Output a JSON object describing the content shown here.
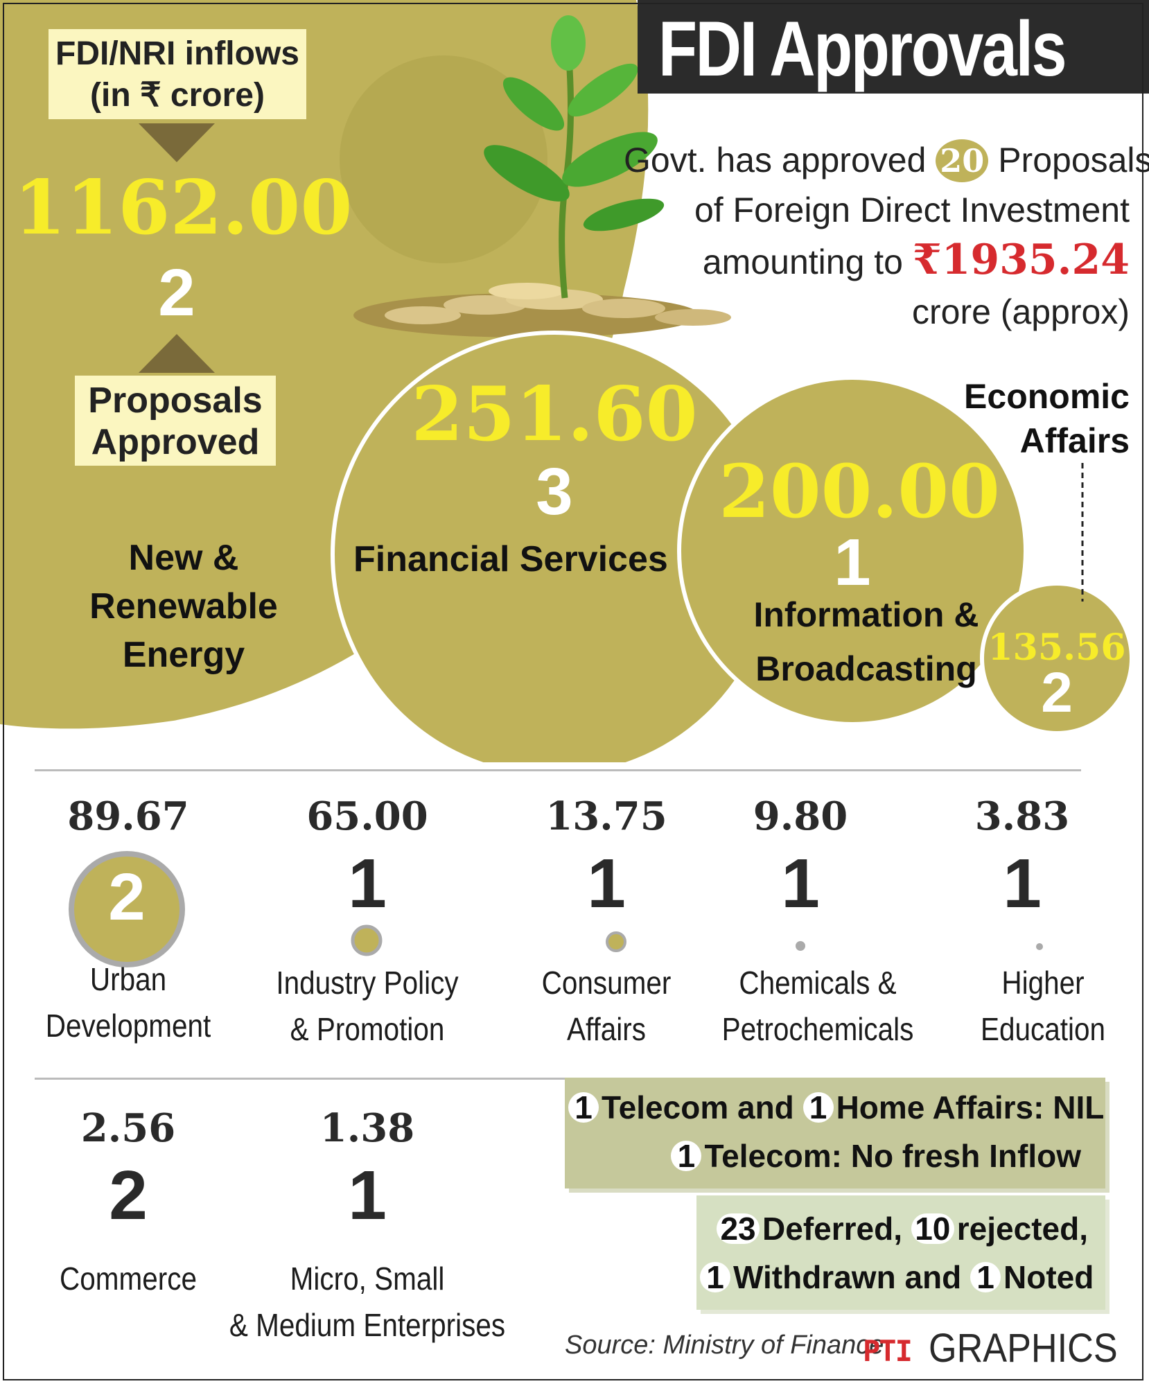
{
  "header": {
    "title": "FDI Approvals",
    "summary_prefix": "Govt. has approved",
    "summary_count": "20",
    "summary_mid1": "Proposals",
    "summary_mid2": "of Foreign Direct Investment",
    "summary_mid3": "amounting to",
    "summary_amount": "₹1935.24",
    "summary_suffix": "crore (approx)"
  },
  "legend": {
    "inflow_label_line1": "FDI/NRI inflows",
    "inflow_label_line2": "(in ₹ crore)",
    "proposals_label_line1": "Proposals",
    "proposals_label_line2": "Approved"
  },
  "colors": {
    "olive": "#bfb25a",
    "yellow": "#f7ec2a",
    "red": "#d62a2e",
    "green_box": "#c5c89b",
    "green_box2": "#d6e0c2"
  },
  "chart_data": {
    "type": "bubble",
    "title": "FDI Approvals",
    "units": "₹ crore",
    "bubbles": [
      {
        "sector": "New & Renewable Energy",
        "value_text": "1162.00",
        "value": 1162.0,
        "proposals": 2
      },
      {
        "sector": "Financial Services",
        "value_text": "251.60",
        "value": 251.6,
        "proposals": 3
      },
      {
        "sector": "Information & Broadcasting",
        "value_text": "200.00",
        "value": 200.0,
        "proposals": 1
      },
      {
        "sector": "Economic Affairs",
        "value_text": "135.56",
        "value": 135.56,
        "proposals": 2
      }
    ],
    "small": [
      {
        "sector_line1": "Urban",
        "sector_line2": "Development",
        "value_text": "89.67",
        "value": 89.67,
        "proposals": "2"
      },
      {
        "sector_line1": "Industry Policy",
        "sector_line2": "& Promotion",
        "value_text": "65.00",
        "value": 65.0,
        "proposals": "1"
      },
      {
        "sector_line1": "Consumer",
        "sector_line2": "Affairs",
        "value_text": "13.75",
        "value": 13.75,
        "proposals": "1"
      },
      {
        "sector_line1": "Chemicals &",
        "sector_line2": "Petrochemicals",
        "value_text": "9.80",
        "value": 9.8,
        "proposals": "1"
      },
      {
        "sector_line1": "Higher",
        "sector_line2": "Education",
        "value_text": "3.83",
        "value": 3.83,
        "proposals": "1"
      },
      {
        "sector_line1": "Commerce",
        "sector_line2": "",
        "value_text": "2.56",
        "value": 2.56,
        "proposals": "2"
      },
      {
        "sector_line1": "Micro, Small",
        "sector_line2": "& Medium Enterprises",
        "value_text": "1.38",
        "value": 1.38,
        "proposals": "1"
      }
    ]
  },
  "notes": {
    "box1_n1": "1",
    "box1_t1": "Telecom and",
    "box1_n2": "1",
    "box1_t2": "Home Affairs: NIL",
    "box1_n3": "1",
    "box1_t3": "Telecom: No fresh Inflow",
    "box2_n1": "23",
    "box2_t1": "Deferred,",
    "box2_n2": "10",
    "box2_t2": "rejected,",
    "box2_n3": "1",
    "box2_t3": "Withdrawn and",
    "box2_n4": "1",
    "box2_t4": "Noted"
  },
  "footer": {
    "source": "Source: Ministry of Finance",
    "credit_logo": "PTI",
    "credit_text": "GRAPHICS"
  }
}
